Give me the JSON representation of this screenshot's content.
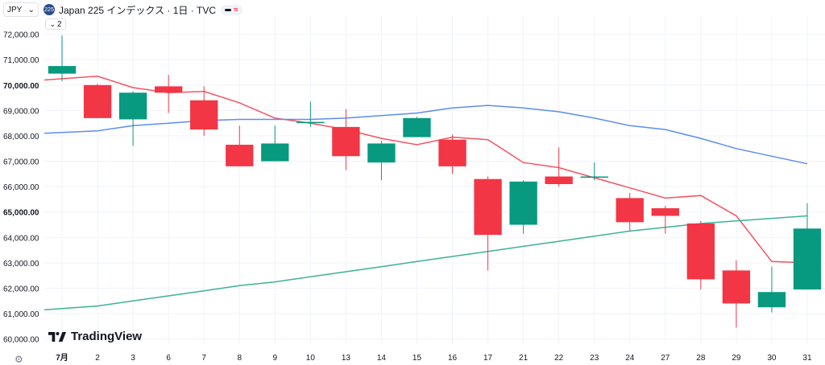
{
  "header": {
    "currency": "JPY",
    "symbol_badge": "225",
    "title": "Japan 225 インデックス · 1日 · TVC",
    "indicator_count": "2"
  },
  "watermark": "TradingView",
  "colors": {
    "up": "#089981",
    "down": "#f23645",
    "ma_fast": "#f7525f",
    "ma_mid": "#5b8def",
    "ma_slow": "#3bb19a",
    "grid": "#f0f3fa",
    "text": "#131722"
  },
  "chart_data": {
    "type": "candlestick",
    "title": "Japan 225 インデックス · 1日 · TVC",
    "x_tick_labels": [
      "7月",
      "2",
      "3",
      "6",
      "7",
      "8",
      "9",
      "10",
      "13",
      "14",
      "15",
      "16",
      "17",
      "21",
      "22",
      "23",
      "24",
      "27",
      "28",
      "29",
      "30",
      "31"
    ],
    "y_tick_labels": [
      "60,000.00",
      "61,000.00",
      "62,000.00",
      "63,000.00",
      "64,000.00",
      "65,000.00",
      "66,000.00",
      "67,000.00",
      "68,000.00",
      "69,000.00",
      "70,000.00",
      "71,000.00",
      "72,000.00"
    ],
    "ylim": [
      59800,
      72400
    ],
    "candles": [
      {
        "date": "7月",
        "open": 70450,
        "high": 71950,
        "low": 70150,
        "close": 70750
      },
      {
        "date": "2",
        "open": 70000,
        "high": 70050,
        "low": 68700,
        "close": 68700
      },
      {
        "date": "3",
        "open": 68650,
        "high": 69750,
        "low": 67600,
        "close": 69700
      },
      {
        "date": "6",
        "open": 69950,
        "high": 70400,
        "low": 68900,
        "close": 69700
      },
      {
        "date": "7",
        "open": 69400,
        "high": 69950,
        "low": 68000,
        "close": 68250
      },
      {
        "date": "8",
        "open": 67650,
        "high": 68400,
        "low": 66800,
        "close": 66800
      },
      {
        "date": "9",
        "open": 67000,
        "high": 68400,
        "low": 67000,
        "close": 67700
      },
      {
        "date": "10",
        "open": 68500,
        "high": 69350,
        "low": 68350,
        "close": 68550
      },
      {
        "date": "13",
        "open": 68350,
        "high": 69050,
        "low": 66650,
        "close": 67200
      },
      {
        "date": "14",
        "open": 66950,
        "high": 67800,
        "low": 66250,
        "close": 67700
      },
      {
        "date": "15",
        "open": 67950,
        "high": 68750,
        "low": 67950,
        "close": 68700
      },
      {
        "date": "16",
        "open": 67850,
        "high": 68050,
        "low": 66500,
        "close": 66800
      },
      {
        "date": "17",
        "open": 66300,
        "high": 66400,
        "low": 62700,
        "close": 64100
      },
      {
        "date": "21",
        "open": 64500,
        "high": 66250,
        "low": 64150,
        "close": 66200
      },
      {
        "date": "22",
        "open": 66400,
        "high": 67550,
        "low": 66000,
        "close": 66100
      },
      {
        "date": "23",
        "open": 66350,
        "high": 66950,
        "low": 66250,
        "close": 66400
      },
      {
        "date": "24",
        "open": 65550,
        "high": 65750,
        "low": 64250,
        "close": 64600
      },
      {
        "date": "27",
        "open": 65150,
        "high": 65250,
        "low": 64150,
        "close": 64850
      },
      {
        "date": "28",
        "open": 64550,
        "high": 64650,
        "low": 61950,
        "close": 62350
      },
      {
        "date": "29",
        "open": 62700,
        "high": 63100,
        "low": 60450,
        "close": 61400
      },
      {
        "date": "30",
        "open": 61250,
        "high": 62850,
        "low": 61050,
        "close": 61850
      },
      {
        "date": "31",
        "open": 61950,
        "high": 65350,
        "low": 61950,
        "close": 64350
      }
    ],
    "series": [
      {
        "values": [
          70200,
          70350,
          69900,
          69700,
          69750,
          69300,
          68700,
          68500,
          68250,
          67900,
          67650,
          67950,
          67850,
          66950,
          66750,
          66350,
          65950,
          65550,
          65650,
          64850,
          63050,
          63000
        ]
      },
      {
        "values": [
          68100,
          68200,
          68400,
          68500,
          68600,
          68650,
          68650,
          68650,
          68700,
          68800,
          68900,
          69100,
          69200,
          69100,
          68950,
          68700,
          68400,
          68250,
          67900,
          67500,
          67200,
          66900
        ]
      },
      {
        "values": [
          61150,
          61300,
          61500,
          61700,
          61900,
          62100,
          62250,
          62450,
          62650,
          62850,
          63050,
          63250,
          63450,
          63650,
          63850,
          64050,
          64250,
          64400,
          64550,
          64650,
          64750,
          64850
        ]
      }
    ]
  }
}
